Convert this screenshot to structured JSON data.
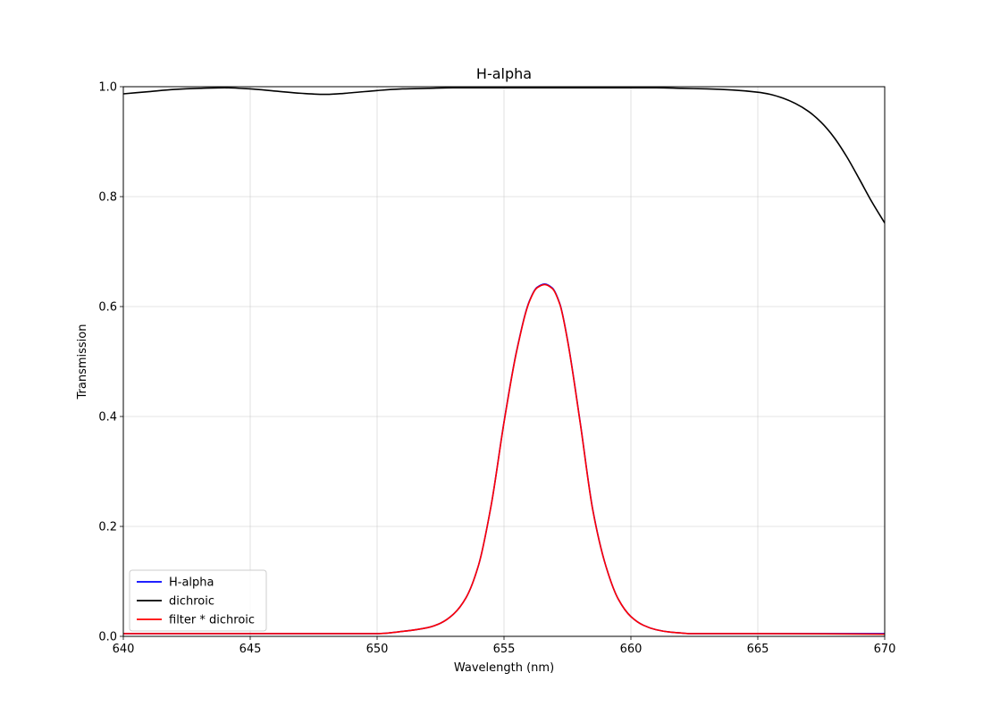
{
  "chart_data": {
    "type": "line",
    "title": "H-alpha",
    "xlabel": "Wavelength (nm)",
    "ylabel": "Transmission",
    "xlim": [
      640,
      670
    ],
    "ylim": [
      0,
      1.0
    ],
    "x_ticks": [
      640,
      645,
      650,
      655,
      660,
      665,
      670
    ],
    "x_tick_labels": [
      "640",
      "645",
      "650",
      "655",
      "660",
      "665",
      "670"
    ],
    "y_ticks": [
      0,
      0.2,
      0.4,
      0.6,
      0.8,
      1.0
    ],
    "y_tick_labels": [
      "0.0",
      "0.2",
      "0.4",
      "0.6",
      "0.8",
      "1.0"
    ],
    "grid": true,
    "legend_position": "lower-left",
    "series": [
      {
        "name": "H-alpha",
        "color": "#0000ff",
        "x": [
          640,
          645,
          650,
          651,
          652,
          652.5,
          653,
          653.5,
          654,
          654.5,
          655,
          655.5,
          656,
          656.3,
          656.6,
          656.9,
          657.2,
          657.5,
          658,
          658.5,
          659,
          659.5,
          660,
          660.5,
          661,
          661.5,
          662,
          662.3,
          665,
          670
        ],
        "y": [
          0.005,
          0.005,
          0.005,
          0.009,
          0.016,
          0.024,
          0.04,
          0.07,
          0.13,
          0.24,
          0.39,
          0.52,
          0.61,
          0.635,
          0.641,
          0.634,
          0.605,
          0.54,
          0.39,
          0.23,
          0.13,
          0.068,
          0.036,
          0.02,
          0.012,
          0.008,
          0.006,
          0.005,
          0.005,
          0.005
        ]
      },
      {
        "name": "dichroic",
        "color": "#000000",
        "x": [
          640,
          641,
          642,
          643,
          644,
          645,
          646,
          647,
          648,
          649,
          650,
          651,
          652,
          653,
          655,
          657,
          659,
          661,
          662,
          663,
          664,
          665,
          665.5,
          666,
          666.5,
          667,
          667.5,
          668,
          668.5,
          669,
          669.5,
          670
        ],
        "y": [
          0.987,
          0.991,
          0.995,
          0.997,
          0.998,
          0.996,
          0.992,
          0.988,
          0.986,
          0.989,
          0.993,
          0.996,
          0.997,
          0.998,
          0.998,
          0.998,
          0.998,
          0.998,
          0.997,
          0.996,
          0.994,
          0.99,
          0.986,
          0.979,
          0.969,
          0.955,
          0.935,
          0.908,
          0.873,
          0.832,
          0.79,
          0.752
        ]
      },
      {
        "name": "filter * dichroic",
        "color": "#ff0000",
        "x": [
          640,
          645,
          650,
          651,
          652,
          652.5,
          653,
          653.5,
          654,
          654.5,
          655,
          655.5,
          656,
          656.3,
          656.6,
          656.9,
          657.2,
          657.5,
          658,
          658.5,
          659,
          659.5,
          660,
          660.5,
          661,
          661.5,
          662,
          662.3,
          665,
          670
        ],
        "y": [
          0.005,
          0.005,
          0.005,
          0.009,
          0.016,
          0.024,
          0.04,
          0.07,
          0.13,
          0.24,
          0.389,
          0.519,
          0.609,
          0.634,
          0.64,
          0.633,
          0.604,
          0.539,
          0.389,
          0.229,
          0.13,
          0.068,
          0.036,
          0.02,
          0.012,
          0.008,
          0.006,
          0.005,
          0.005,
          0.004
        ]
      }
    ]
  }
}
